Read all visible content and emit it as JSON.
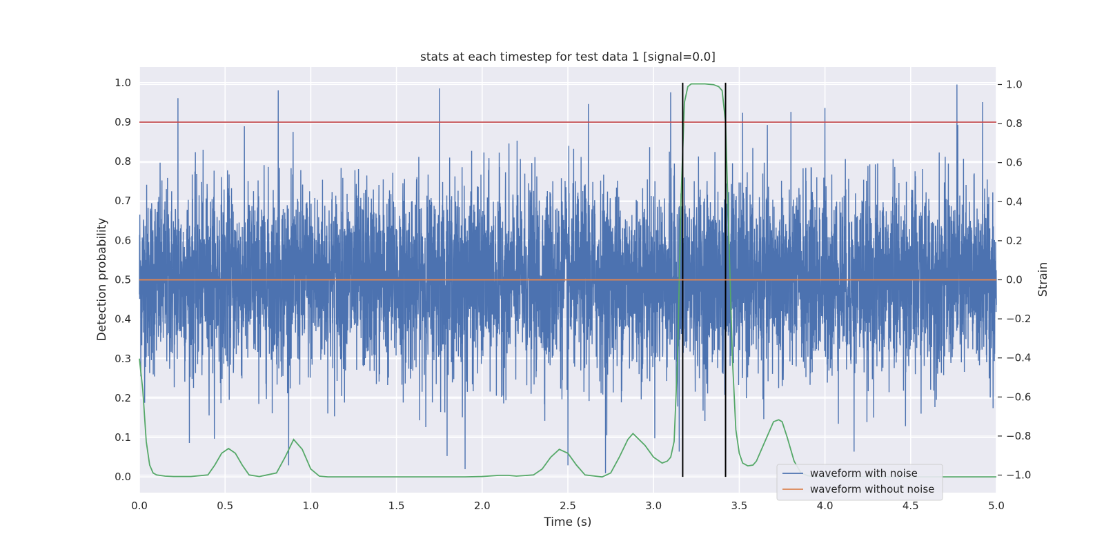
{
  "chart_data": {
    "type": "line",
    "title": "stats at each timestep for test data 1 [signal=0.0]",
    "xlabel": "Time (s)",
    "ylabel_left": "Detection probability",
    "ylabel_right": "Strain",
    "xlim": [
      0.0,
      5.0
    ],
    "ylim_left": [
      -0.04,
      1.04
    ],
    "ylim_right": [
      -1.09,
      1.09
    ],
    "grid": true,
    "legend_location": "lower right",
    "x_ticks": [
      "0.0",
      "0.5",
      "1.0",
      "1.5",
      "2.0",
      "2.5",
      "3.0",
      "3.5",
      "4.0",
      "4.5",
      "5.0"
    ],
    "y_ticks_left": [
      "0.0",
      "0.1",
      "0.2",
      "0.3",
      "0.4",
      "0.5",
      "0.6",
      "0.7",
      "0.8",
      "0.9",
      "1.0"
    ],
    "y_ticks_right": [
      "−1.0",
      "−0.8",
      "−0.6",
      "−0.4",
      "−0.2",
      "0.0",
      "0.2",
      "0.4",
      "0.6",
      "0.8",
      "1.0"
    ],
    "series": [
      {
        "name": "waveform with noise",
        "axis": "right",
        "color": "#4c72b0",
        "style": "gaussian noise, approx. std 0.22 strain, range -1.0 to 1.0",
        "sample_rate": 2048,
        "n_points": 10240
      },
      {
        "name": "waveform without noise",
        "axis": "right",
        "color": "#dd8452",
        "x": [
          0.0,
          5.0
        ],
        "y": [
          0.0,
          0.0
        ]
      },
      {
        "axis": "left",
        "color": "#55a868",
        "x": [
          0.0,
          0.02,
          0.04,
          0.06,
          0.08,
          0.1,
          0.15,
          0.2,
          0.3,
          0.4,
          0.44,
          0.48,
          0.52,
          0.56,
          0.6,
          0.64,
          0.7,
          0.8,
          0.85,
          0.9,
          0.95,
          1.0,
          1.05,
          1.1,
          1.5,
          1.9,
          2.0,
          2.1,
          2.15,
          2.2,
          2.3,
          2.35,
          2.4,
          2.45,
          2.5,
          2.55,
          2.6,
          2.7,
          2.75,
          2.8,
          2.85,
          2.88,
          2.95,
          3.0,
          3.05,
          3.08,
          3.1,
          3.12,
          3.14,
          3.16,
          3.18,
          3.2,
          3.22,
          3.25,
          3.3,
          3.35,
          3.38,
          3.4,
          3.42,
          3.44,
          3.46,
          3.48,
          3.5,
          3.52,
          3.55,
          3.58,
          3.6,
          3.63,
          3.67,
          3.7,
          3.73,
          3.75,
          3.78,
          3.82,
          3.86,
          3.9,
          3.95,
          4.0,
          4.5,
          5.0
        ],
        "y": [
          0.3,
          0.22,
          0.09,
          0.03,
          0.01,
          0.005,
          0.002,
          0.001,
          0.001,
          0.005,
          0.03,
          0.06,
          0.072,
          0.06,
          0.03,
          0.005,
          0.001,
          0.01,
          0.05,
          0.095,
          0.07,
          0.02,
          0.002,
          0.0,
          0.0,
          0.0,
          0.001,
          0.004,
          0.004,
          0.002,
          0.005,
          0.02,
          0.05,
          0.07,
          0.06,
          0.03,
          0.005,
          0.0,
          0.01,
          0.05,
          0.095,
          0.11,
          0.08,
          0.05,
          0.035,
          0.04,
          0.05,
          0.09,
          0.3,
          0.7,
          0.95,
          0.99,
          0.997,
          0.997,
          0.997,
          0.995,
          0.99,
          0.98,
          0.9,
          0.6,
          0.3,
          0.12,
          0.06,
          0.035,
          0.028,
          0.03,
          0.04,
          0.07,
          0.11,
          0.14,
          0.145,
          0.14,
          0.1,
          0.04,
          0.01,
          0.003,
          0.001,
          0.0,
          0.0,
          0.0
        ]
      }
    ],
    "hlines": [
      {
        "axis": "left",
        "y": 0.9,
        "color": "#c44e52"
      }
    ],
    "vlines": [
      {
        "x": 3.17,
        "ymin": 0.0,
        "ymax": 1.0,
        "color": "#000000"
      },
      {
        "x": 3.42,
        "ymin": 0.0,
        "ymax": 1.0,
        "color": "#000000"
      }
    ],
    "noise_peaks": [
      {
        "x": 0.225,
        "y": 0.93
      },
      {
        "x": 0.81,
        "y": 0.97
      },
      {
        "x": 1.75,
        "y": 0.98
      },
      {
        "x": 2.62,
        "y": 0.9
      },
      {
        "x": 3.1,
        "y": 0.96
      },
      {
        "x": 4.92,
        "y": 0.91
      },
      {
        "x": 4.77,
        "y": 1.0
      },
      {
        "x": 4.0,
        "y": 0.88
      },
      {
        "x": 1.9,
        "y": -0.97
      },
      {
        "x": 2.72,
        "y": -0.99
      },
      {
        "x": 2.5,
        "y": -0.95
      },
      {
        "x": 3.15,
        "y": -0.88
      },
      {
        "x": 4.17,
        "y": -0.88
      }
    ]
  }
}
